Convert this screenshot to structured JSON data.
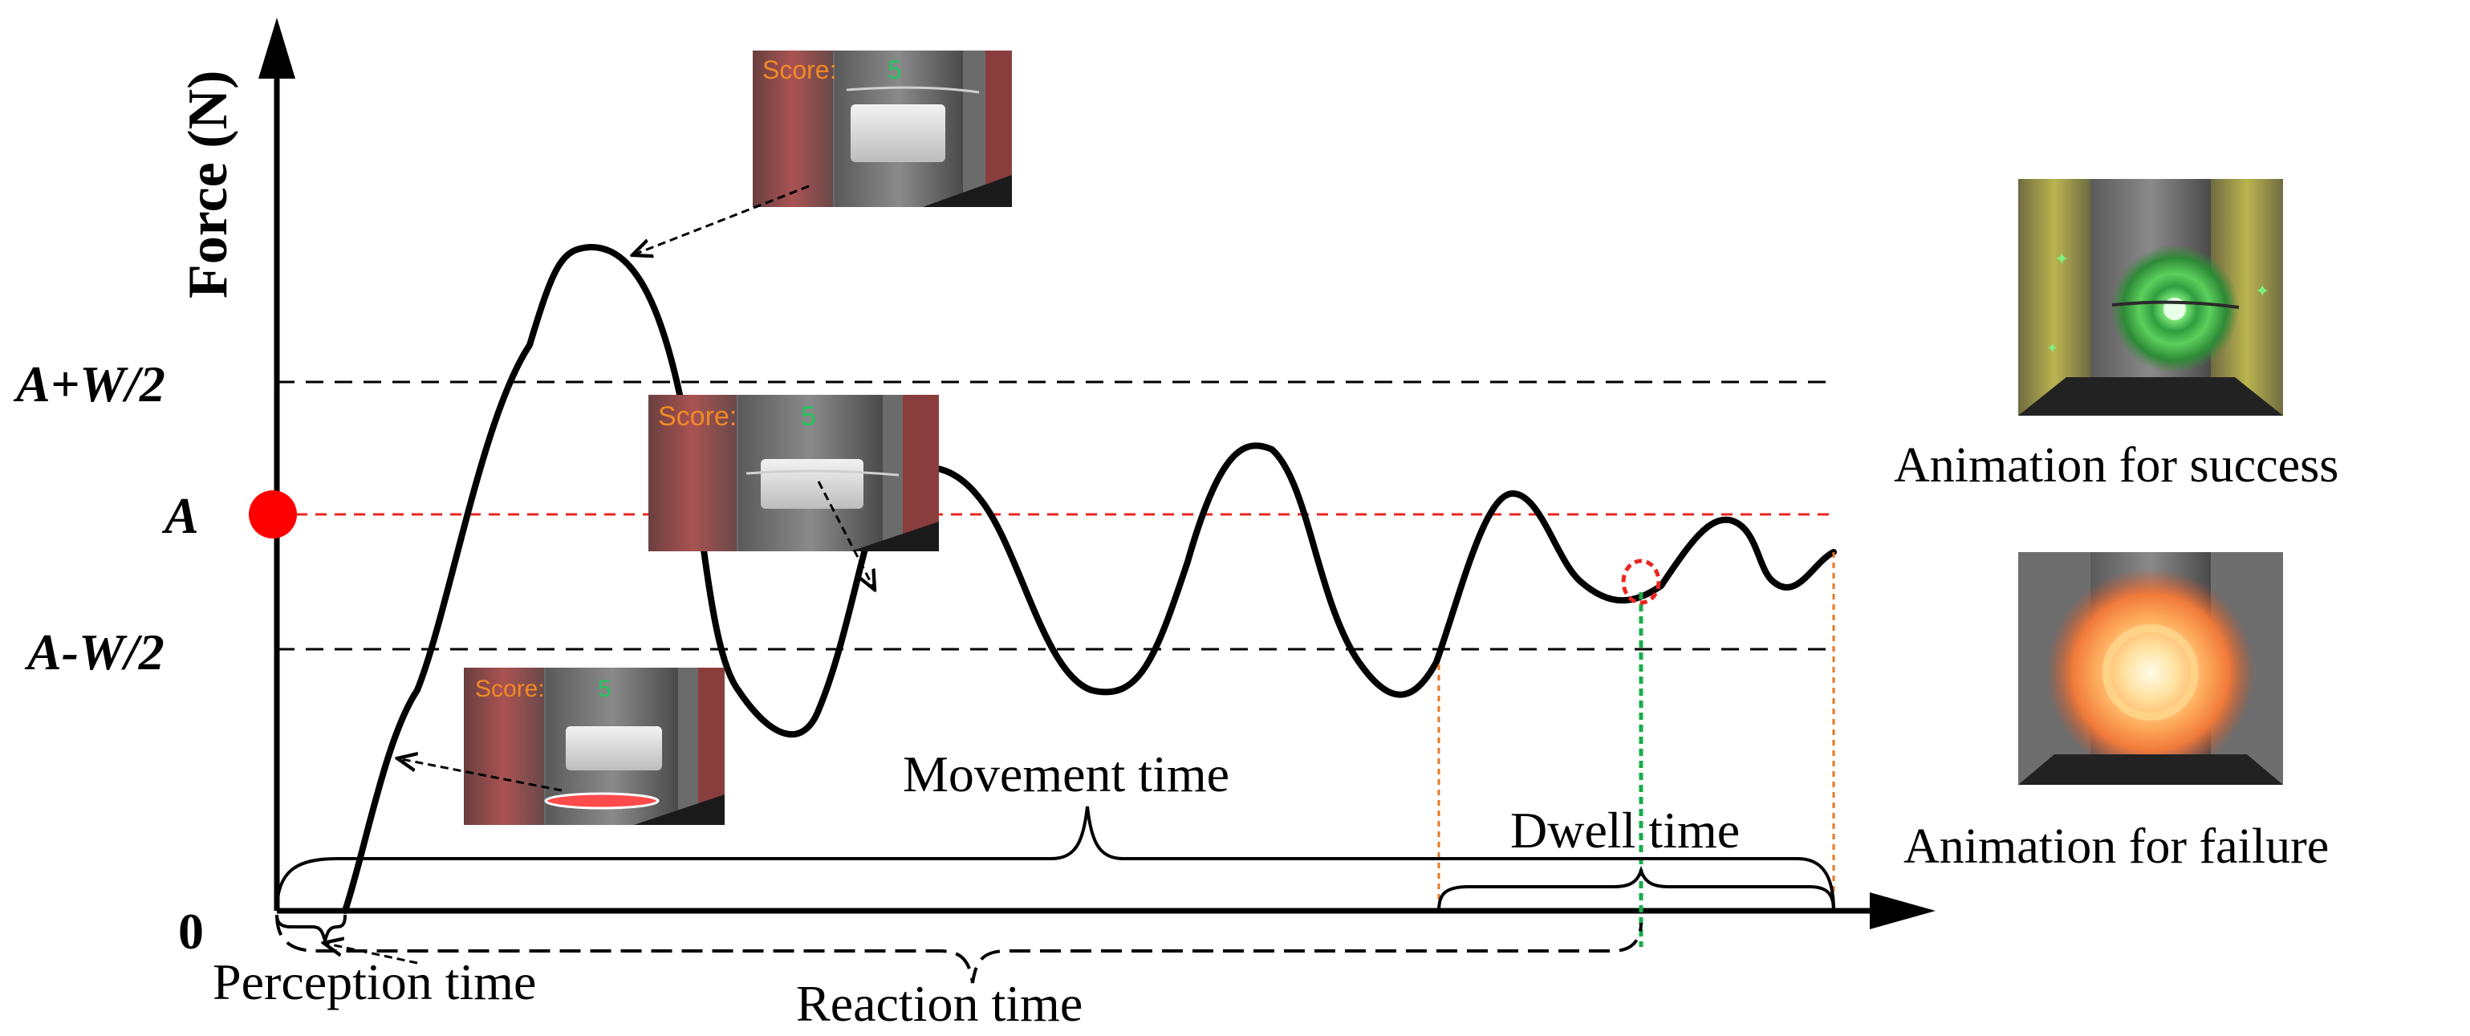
{
  "axes": {
    "y_label": "Force (N)",
    "origin_label": "0"
  },
  "levels": {
    "upper": "A+W/2",
    "target": "A",
    "lower": "A-W/2"
  },
  "intervals": {
    "movement": "Movement time",
    "dwell": "Dwell time",
    "perception": "Perception time",
    "reaction": "Reaction time"
  },
  "insets": {
    "score_label": "Score:",
    "score_value": "5"
  },
  "side_panels": {
    "success_caption": "Animation for success",
    "failure_caption": "Animation for failure"
  },
  "colors": {
    "curve": "#000000",
    "target_line": "#e8261f",
    "target_marker": "#ff0000",
    "tolerance_lines": "#000000",
    "dwell_markers": "#e87722",
    "selection_marker": "#1aab4a",
    "score_label": "#f08a24",
    "score_value": "#22c55e"
  }
}
